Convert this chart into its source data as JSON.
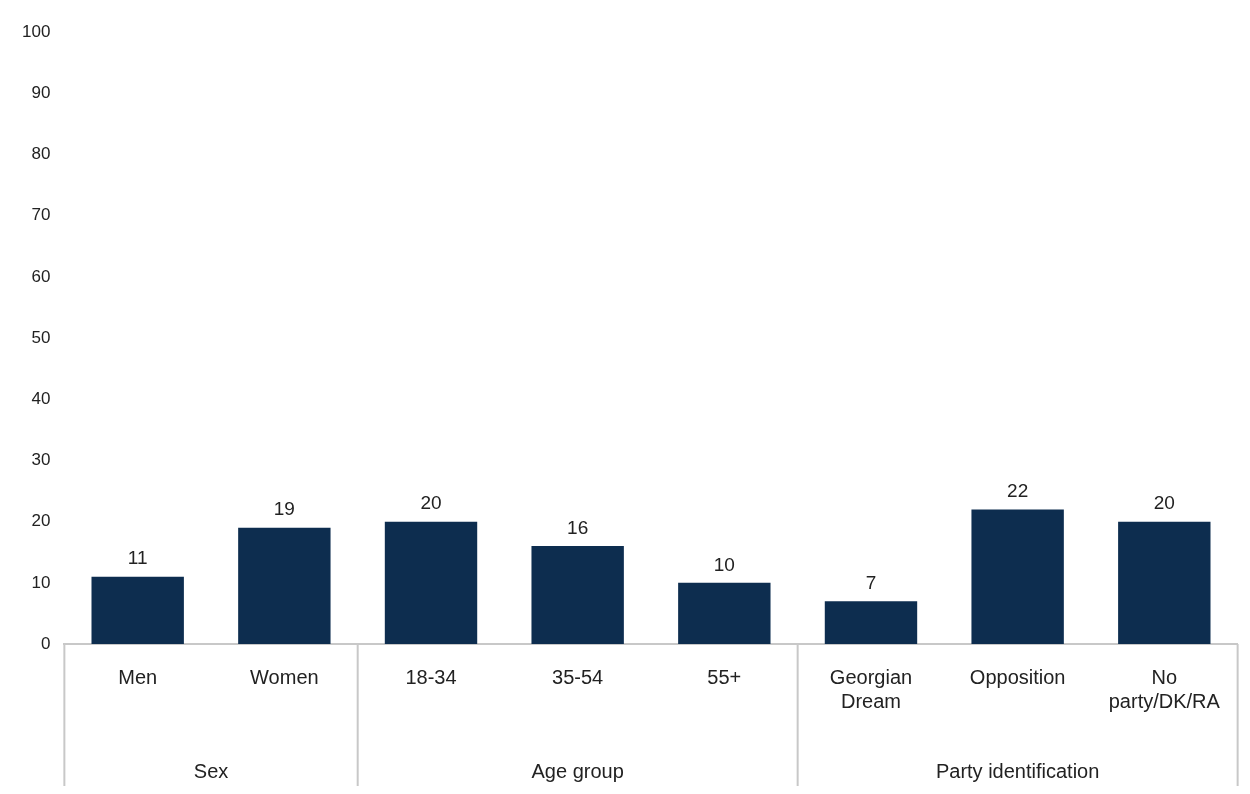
{
  "chart_data": {
    "type": "bar",
    "categories": [
      "Men",
      "Women",
      "18-34",
      "35-54",
      "55+",
      "Georgian Dream",
      "Opposition",
      "No party/DK/RA"
    ],
    "values": [
      11,
      19,
      20,
      16,
      10,
      7,
      22,
      20
    ],
    "color": "#0d2d4f",
    "ylim": [
      0,
      100
    ],
    "yticks": [
      0,
      10,
      20,
      30,
      40,
      50,
      60,
      70,
      80,
      90,
      100
    ],
    "grid": false,
    "data_labels": true,
    "legend": false,
    "annotations": [
      "Sex",
      "Age group",
      "Party identification"
    ]
  }
}
